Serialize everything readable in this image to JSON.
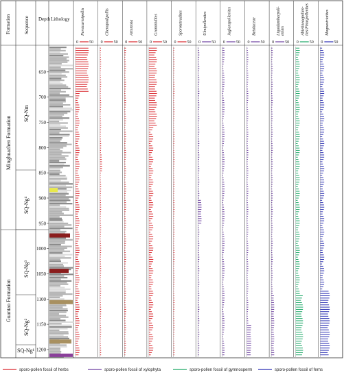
{
  "headers": {
    "formation": "Formation",
    "sequence": "Sequence",
    "depth": "Depth",
    "lithology": "Lithology"
  },
  "formations": [
    {
      "label": "Minghuazhen Formation"
    },
    {
      "label": "Guantao Formation"
    }
  ],
  "sequences": [
    {
      "label": "SQ-Nm"
    },
    {
      "label": "SQ-Ng⁴"
    },
    {
      "label": "SQ-Ng³"
    },
    {
      "label": "SQ-Ng²"
    },
    {
      "label": "SQ-Ng¹"
    }
  ],
  "chart_data": {
    "type": "bar",
    "y_axis": {
      "label": "Depth",
      "range": [
        600,
        1215
      ],
      "ticks": [
        650,
        700,
        750,
        800,
        850,
        900,
        950,
        1000,
        1050,
        1100,
        1150,
        1200
      ]
    },
    "x_scale_ticks": [
      "0",
      "50"
    ],
    "columns": [
      {
        "name": "Persicarioipollis",
        "group": "herbs"
      },
      {
        "name": "Chenopodipollis",
        "group": "herbs"
      },
      {
        "name": "Artemisia",
        "group": "herbs"
      },
      {
        "name": "Graminidites",
        "group": "herbs"
      },
      {
        "name": "Sporotetradites",
        "group": "herbs"
      },
      {
        "name": "Ulmipollenites",
        "group": "xylophyta"
      },
      {
        "name": "Juglanspollenites",
        "group": "xylophyta"
      },
      {
        "name": "Betulaceae",
        "group": "xylophyta"
      },
      {
        "name": "Liquidambarpoll-\nenites",
        "group": "xylophyta"
      },
      {
        "name": "Abietineaepollen-\nites/Pinuspollenites",
        "group": "gymnosperm"
      },
      {
        "name": "Magnastriatites",
        "group": "ferns"
      }
    ],
    "legend": [
      {
        "group": "herbs",
        "label": "sporo-pollen fossil of herbs",
        "color": "#d9262c"
      },
      {
        "group": "xylophyta",
        "label": "sporo-pollen fossil of xylophyta",
        "color": "#6c3fa0"
      },
      {
        "group": "gymnosperm",
        "label": "sporo-pollen fossil of gymnosperm",
        "color": "#1aa665"
      },
      {
        "group": "ferns",
        "label": "sporo-pollen fossil of ferns",
        "color": "#2a2fb3"
      }
    ]
  }
}
